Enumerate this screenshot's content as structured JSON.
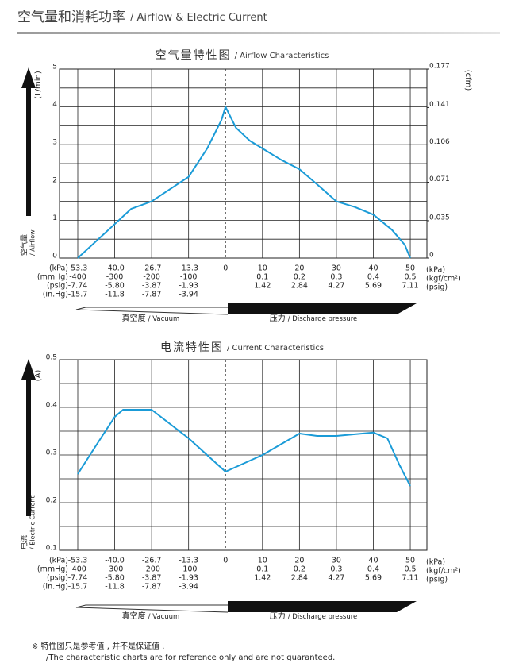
{
  "header": {
    "title": "空气量和消耗功率",
    "title_en": "/ Airflow & Electric Current"
  },
  "footnote": [
    "※ 特性图只是参考值 , 并不是保证值 .",
    "/The characteristic charts are for reference only and are not guaranteed."
  ],
  "chart_data": [
    {
      "type": "line",
      "title": "空气量特性图",
      "title_en": "/ Airflow Characteristics",
      "y_label": "空气量",
      "y_label_en": "/ Airflow",
      "y_unit": "(L/min)",
      "y2_unit": "(cfm)",
      "color": "#1a9bd7",
      "x": [
        -53.3,
        -40,
        -34.1,
        -26.7,
        -13.3,
        -6.6,
        -1.5,
        0,
        2.8,
        6.6,
        10,
        15,
        20,
        24.8,
        30,
        35,
        40,
        45,
        48.5,
        50
      ],
      "values": [
        0,
        0.9,
        1.3,
        1.5,
        2.15,
        2.9,
        3.65,
        4.0,
        3.45,
        3.1,
        2.9,
        2.6,
        2.35,
        1.95,
        1.5,
        1.35,
        1.15,
        0.75,
        0.35,
        0
      ],
      "xticks": [
        -53.3,
        {
          "value": -40,
          "label": "-40.0"
        },
        -26.7,
        -13.3,
        0,
        10,
        20,
        30,
        40,
        50
      ],
      "ylim": [
        0,
        5
      ],
      "yticks": [
        0,
        1,
        2,
        3,
        4,
        5
      ],
      "y_minor_ticks": [
        0.5,
        1.5,
        2.5,
        3.5,
        4.5
      ],
      "y2lim": [
        0,
        0.177
      ],
      "y2ticks": [
        0,
        0.035,
        0.071,
        0.106,
        0.141,
        0.177
      ],
      "x_units": [
        "(kPa)",
        "(mmHg)",
        "(psig)",
        "(in.Hg)"
      ],
      "x_units_right": [
        "(kPa)",
        "(kgf/cm²)",
        "(psig)"
      ],
      "x_rows": [
        [
          "-400",
          "-300",
          "-200",
          "-100",
          null,
          "0.1",
          "0.2",
          "0.3",
          "0.4",
          "0.5"
        ],
        [
          "-7.74",
          "-5.80",
          "-3.87",
          "-1.93",
          null,
          "1.42",
          "2.84",
          "4.27",
          "5.69",
          "7.11"
        ],
        [
          "-15.7",
          "-11.8",
          "-7.87",
          "-3.94",
          null,
          null,
          null,
          null,
          null,
          null
        ]
      ],
      "vacuum_label": "真空度",
      "vacuum_label_en": "/ Vacuum",
      "pressure_label": "压力",
      "pressure_label_en": "/ Discharge pressure",
      "grid": true
    },
    {
      "type": "line",
      "title": "电流特性图",
      "title_en": "/ Current Characteristics",
      "y_label": "电流",
      "y_label_en": "/ Electric Current",
      "y_unit": "(A)",
      "color": "#1a9bd7",
      "x": [
        -53.3,
        -46.7,
        -40,
        -37,
        -26.7,
        -13.3,
        0,
        10,
        20,
        24.8,
        30,
        40,
        43.8,
        47,
        50
      ],
      "values": [
        0.26,
        0.32,
        0.38,
        0.395,
        0.395,
        0.335,
        0.265,
        0.3,
        0.345,
        0.34,
        0.34,
        0.347,
        0.335,
        0.28,
        0.235
      ],
      "xticks": [
        -53.3,
        {
          "value": -40,
          "label": "-40.0"
        },
        -26.7,
        -13.3,
        0,
        10,
        20,
        30,
        40,
        50
      ],
      "ylim": [
        0.1,
        0.5
      ],
      "yticks": [
        0.1,
        0.2,
        0.3,
        0.4,
        0.5
      ],
      "y_minor_ticks": [
        0.15,
        0.25,
        0.35,
        0.45
      ],
      "x_units": [
        "(kPa)",
        "(mmHg)",
        "(psig)",
        "(in.Hg)"
      ],
      "x_units_right": [
        "(kPa)",
        "(kgf/cm²)",
        "(psig)"
      ],
      "x_rows": [
        [
          "-400",
          "-300",
          "-200",
          "-100",
          null,
          "0.1",
          "0.2",
          "0.3",
          "0.4",
          "0.5"
        ],
        [
          "-7.74",
          "-5.80",
          "-3.87",
          "-1.93",
          null,
          "1.42",
          "2.84",
          "4.27",
          "5.69",
          "7.11"
        ],
        [
          "-15.7",
          "-11.8",
          "-7.87",
          "-3.94",
          null,
          null,
          null,
          null,
          null,
          null
        ]
      ],
      "vacuum_label": "真空度",
      "vacuum_label_en": "/ Vacuum",
      "pressure_label": "压力",
      "pressure_label_en": "/ Discharge pressure",
      "grid": true
    }
  ]
}
